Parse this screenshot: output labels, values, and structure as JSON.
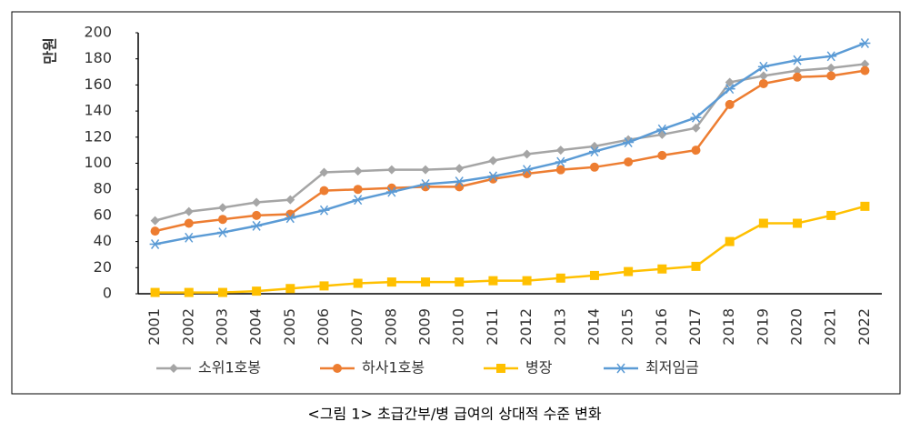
{
  "chart_data": {
    "type": "line",
    "y_label": "만원",
    "caption": "<그림 1> 초급간부/병 급여의 상대적 수준 변화",
    "categories": [
      "2001",
      "2002",
      "2003",
      "2004",
      "2005",
      "2006",
      "2007",
      "2008",
      "2009",
      "2010",
      "2011",
      "2012",
      "2013",
      "2014",
      "2015",
      "2016",
      "2017",
      "2018",
      "2019",
      "2020",
      "2021",
      "2022"
    ],
    "series": [
      {
        "name": "소위1호봉",
        "color": "#a5a5a5",
        "marker": "diamond",
        "values": [
          56,
          63,
          66,
          70,
          72,
          93,
          94,
          95,
          95,
          96,
          102,
          107,
          110,
          113,
          118,
          122,
          127,
          162,
          167,
          171,
          173,
          176
        ]
      },
      {
        "name": "하사1호봉",
        "color": "#ed7d31",
        "marker": "circle",
        "values": [
          48,
          54,
          57,
          60,
          61,
          79,
          80,
          81,
          82,
          82,
          88,
          92,
          95,
          97,
          101,
          106,
          110,
          145,
          161,
          166,
          167,
          171
        ]
      },
      {
        "name": "병장",
        "color": "#ffc000",
        "marker": "square",
        "values": [
          1,
          1,
          1,
          2,
          4,
          6,
          8,
          9,
          9,
          9,
          10,
          10,
          12,
          14,
          17,
          19,
          21,
          40,
          54,
          54,
          60,
          67
        ]
      },
      {
        "name": "최저임금",
        "color": "#5b9bd5",
        "marker": "star",
        "values": [
          38,
          43,
          47,
          52,
          58,
          64,
          72,
          78,
          84,
          86,
          90,
          95,
          101,
          109,
          116,
          126,
          135,
          157,
          174,
          179,
          182,
          192
        ]
      }
    ],
    "ylim": [
      0,
      200
    ],
    "yticks": [
      0,
      20,
      40,
      60,
      80,
      100,
      120,
      140,
      160,
      180,
      200
    ],
    "grid": false,
    "legend": "bottom"
  }
}
